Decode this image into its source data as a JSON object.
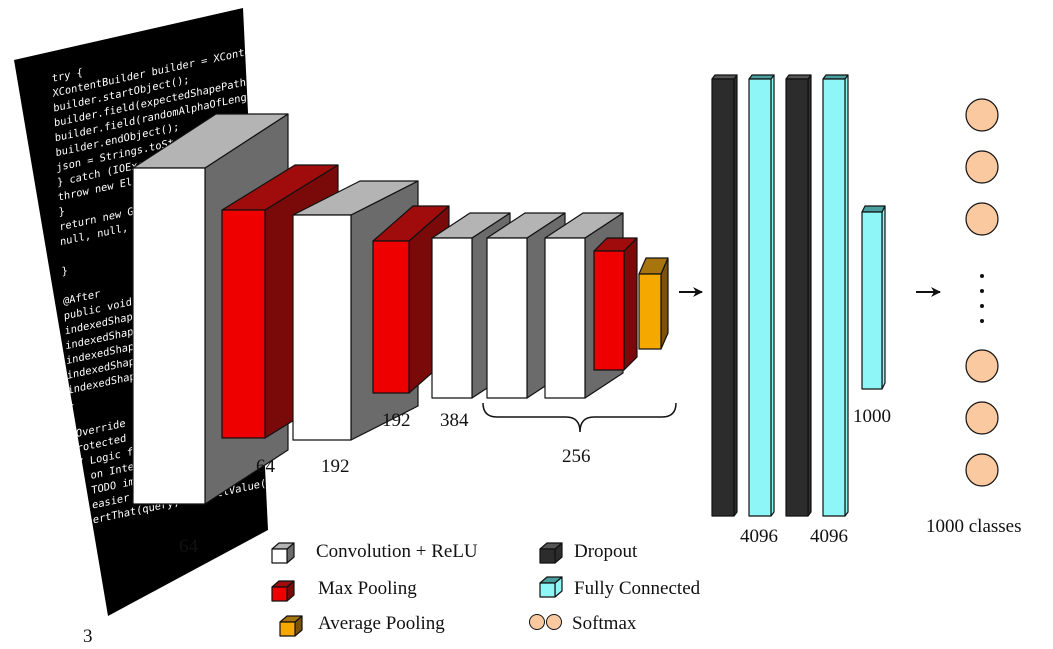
{
  "input_code_lines": [
    "try {",
    "    XContentBuilder builder = XContentFactory.jsonBuilder();",
    "    builder.startObject();",
    "    builder.field(expectedShapePath, indexedShapeToReturn);",
    "    builder.field(randomAlphaOfLengthBetween(10, 20), value);",
    "    builder.endObject();",
    "    json = Strings.toString(builder);",
    "} catch (IOException ex) {",
    "    throw new ElasticsearchException(ex);",
    "}",
    "return new GetResponse(new GetResult(indexedShapeIndex,",
    "    null, null, true, new BytesArray(json), null));",
    "",
    "}",
    "",
    "@After",
    "public void clearShapeFields() {",
    "    indexedShapeToReturn = null;",
    "    indexedShapeId = null;",
    "    indexedShapePath = null;",
    "    indexedShapeIndex = null;",
    "    indexedShapeRouting = null;",
    "}",
    "",
    "@Override",
    "protected void doAssertLuceneQuery() {",
    "    // Logic for doToQuery is complex",
    "    // on Integration tests",
    "    // TODO improve this test",
    "    // easier to test",
    "    assertThat(query, notNullValue());"
  ],
  "labels": {
    "input_depth": "3",
    "conv1": "64",
    "pool1": "64",
    "conv2": "192",
    "pool2": "192",
    "conv3": "384",
    "conv_group": "256",
    "fc1": "4096",
    "fc2": "4096",
    "fc3": "1000",
    "output": "1000 classes"
  },
  "legend": {
    "conv": "Convolution + ReLU",
    "max_pool": "Max Pooling",
    "avg_pool": "Average Pooling",
    "dropout": "Dropout",
    "fc": "Fully Connected",
    "softmax": "Softmax"
  },
  "colors": {
    "conv_front": "#ffffff",
    "conv_side": "#6b6b6b",
    "conv_top": "#b4b4b4",
    "maxpool_front": "#ee0000",
    "maxpool_side": "#7a0a0a",
    "maxpool_top": "#a00c0c",
    "avgpool_front": "#f5a800",
    "avgpool_side": "#7a5208",
    "avgpool_top": "#a8740e",
    "dropout_front": "#2c2c2c",
    "dropout_top": "#555555",
    "fc_front": "#8ef6f6",
    "fc_top": "#4aa0a0",
    "softmax_fill": "#fbc9a0",
    "input_bg": "#000000"
  },
  "softmax_ellipsis": "⋮"
}
